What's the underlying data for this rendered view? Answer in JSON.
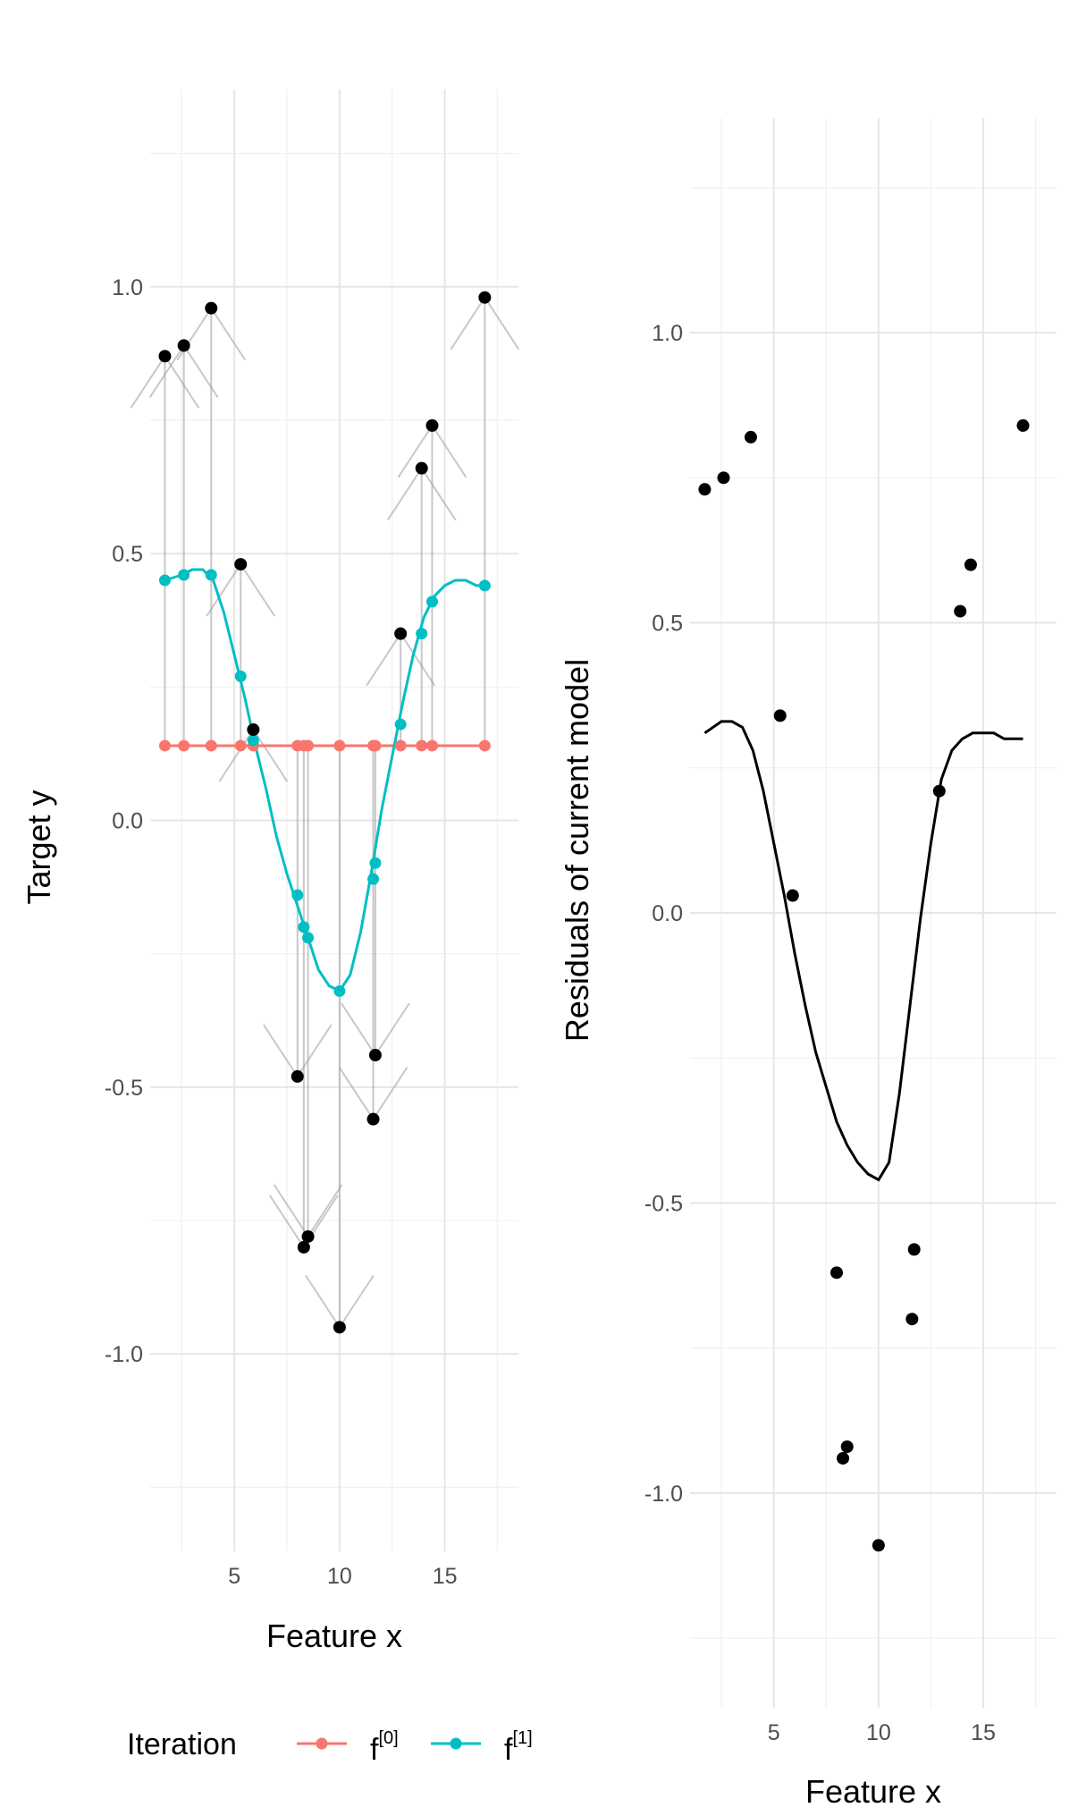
{
  "chart_data": [
    {
      "type": "line",
      "xlabel": "Feature x",
      "ylabel": "Target y",
      "xlim": [
        1,
        18.5
      ],
      "ylim": [
        -1.37,
        1.37
      ],
      "x_ticks": [
        5,
        10,
        15
      ],
      "x_tick_labels": [
        "5",
        "10",
        "15"
      ],
      "y_ticks": [
        -1.0,
        -0.5,
        0.0,
        0.5,
        1.0
      ],
      "y_tick_labels": [
        "-1.0",
        "-0.5",
        "0.0",
        "0.5",
        "1.0"
      ],
      "grid": true,
      "points": {
        "x": [
          1.7,
          2.6,
          3.9,
          5.3,
          5.9,
          8.0,
          8.3,
          8.5,
          10.0,
          11.6,
          11.7,
          12.9,
          13.9,
          14.4,
          16.9
        ],
        "y": [
          0.87,
          0.89,
          0.96,
          0.48,
          0.17,
          -0.48,
          -0.8,
          -0.78,
          -0.95,
          -0.56,
          -0.44,
          0.35,
          0.66,
          0.74,
          0.98
        ]
      },
      "series": [
        {
          "name": "f[0]",
          "color": "#f8766d",
          "x": [
            1.7,
            2.6,
            3.9,
            5.3,
            5.9,
            8.0,
            8.3,
            8.5,
            10.0,
            11.6,
            11.7,
            12.9,
            13.9,
            14.4,
            16.9
          ],
          "y": [
            0.14,
            0.14,
            0.14,
            0.14,
            0.14,
            0.14,
            0.14,
            0.14,
            0.14,
            0.14,
            0.14,
            0.14,
            0.14,
            0.14,
            0.14
          ]
        },
        {
          "name": "f[1]",
          "color": "#00bfc4",
          "x": [
            1.7,
            2.6,
            3.9,
            5.3,
            5.9,
            8.0,
            8.3,
            8.5,
            10.0,
            11.6,
            11.7,
            12.9,
            13.9,
            14.4,
            16.9
          ],
          "y": [
            0.45,
            0.46,
            0.46,
            0.27,
            0.15,
            -0.14,
            -0.2,
            -0.22,
            -0.32,
            -0.11,
            -0.08,
            0.18,
            0.35,
            0.41,
            0.44
          ],
          "curve_x": [
            1.7,
            2.5,
            3.0,
            3.5,
            4.0,
            4.5,
            5.0,
            5.5,
            6.0,
            6.5,
            7.0,
            7.5,
            8.0,
            8.5,
            9.0,
            9.5,
            10.0,
            10.5,
            11.0,
            11.5,
            12.0,
            12.5,
            13.0,
            13.5,
            14.0,
            14.5,
            15.0,
            15.5,
            16.0,
            16.5,
            16.9
          ],
          "curve_y": [
            0.45,
            0.46,
            0.47,
            0.47,
            0.45,
            0.39,
            0.31,
            0.23,
            0.14,
            0.06,
            -0.03,
            -0.1,
            -0.16,
            -0.22,
            -0.28,
            -0.31,
            -0.32,
            -0.29,
            -0.21,
            -0.1,
            0.02,
            0.12,
            0.22,
            0.31,
            0.38,
            0.42,
            0.44,
            0.45,
            0.45,
            0.44,
            0.44
          ]
        }
      ]
    },
    {
      "type": "scatter",
      "xlabel": "Feature x",
      "ylabel": "Residuals of current model",
      "xlim": [
        1,
        18.5
      ],
      "ylim": [
        -1.37,
        1.37
      ],
      "x_ticks": [
        5,
        10,
        15
      ],
      "x_tick_labels": [
        "5",
        "10",
        "15"
      ],
      "y_ticks": [
        -1.0,
        -0.5,
        0.0,
        0.5,
        1.0
      ],
      "y_tick_labels": [
        "-1.0",
        "-0.5",
        "0.0",
        "0.5",
        "1.0"
      ],
      "grid": true,
      "points": {
        "x": [
          1.7,
          2.6,
          3.9,
          5.3,
          5.9,
          8.0,
          8.3,
          8.5,
          10.0,
          11.6,
          11.7,
          12.9,
          13.9,
          14.4,
          16.9
        ],
        "y": [
          0.73,
          0.75,
          0.82,
          0.34,
          0.03,
          -0.62,
          -0.94,
          -0.92,
          -1.09,
          -0.7,
          -0.58,
          0.21,
          0.52,
          0.6,
          0.84
        ]
      },
      "fit": {
        "x": [
          1.7,
          2.5,
          3.0,
          3.5,
          4.0,
          4.5,
          5.0,
          5.5,
          6.0,
          6.5,
          7.0,
          7.5,
          8.0,
          8.5,
          9.0,
          9.5,
          10.0,
          10.5,
          11.0,
          11.5,
          12.0,
          12.5,
          13.0,
          13.5,
          14.0,
          14.5,
          15.0,
          15.5,
          16.0,
          16.5,
          16.9
        ],
        "y": [
          0.31,
          0.33,
          0.33,
          0.32,
          0.28,
          0.21,
          0.12,
          0.03,
          -0.07,
          -0.16,
          -0.24,
          -0.3,
          -0.36,
          -0.4,
          -0.43,
          -0.45,
          -0.46,
          -0.43,
          -0.31,
          -0.16,
          -0.01,
          0.12,
          0.23,
          0.28,
          0.3,
          0.31,
          0.31,
          0.31,
          0.3,
          0.3,
          0.3
        ]
      }
    }
  ],
  "legend": {
    "title": "Iteration",
    "items": [
      {
        "base": "f",
        "sup": "[0]",
        "color": "#f8766d"
      },
      {
        "base": "f",
        "sup": "[1]",
        "color": "#00bfc4"
      }
    ]
  }
}
